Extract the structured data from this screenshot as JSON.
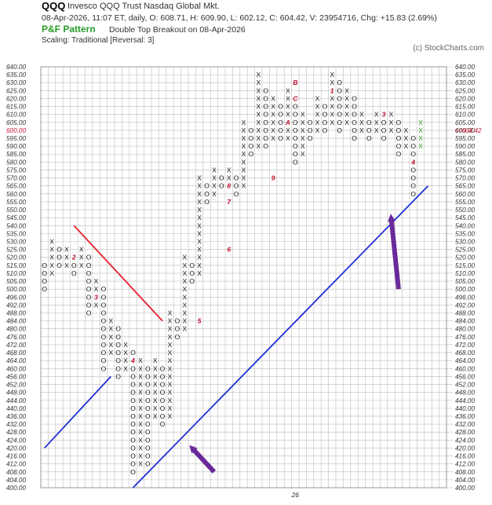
{
  "header": {
    "symbol": "QQQ",
    "name": "Invesco QQQ Trust  Nasdaq Global Mkt.",
    "quote": "08-Apr-2026, 11:07 ET, daily, O: 608.71, H: 609.90, L: 602.12, C: 604.42, V: 23954716, Chg: +15.83 (2.69%)",
    "pf_label": "P&F Pattern",
    "pattern": "Double Top Breakout on 08-Apr-2026",
    "scaling": "Scaling: Traditional [Reversal: 3]",
    "copyright": "(c) StockCharts.com"
  },
  "colors": {
    "grid": "#bcbcbc",
    "mark": "#1a1a1a",
    "month_marker": "#c0102e",
    "current_column": "#2aa02a",
    "resistance_line": "#e8202a",
    "support_line": "#1f2fd6",
    "arrow": "#6a2a9a",
    "price_tag": "#d01030"
  },
  "chart_data": {
    "type": "point-and-figure",
    "title": "QQQ",
    "box_levels": [
      400,
      404,
      408,
      412,
      416,
      420,
      424,
      428,
      432,
      436,
      440,
      444,
      448,
      452,
      456,
      460,
      464,
      468,
      472,
      476,
      480,
      484,
      488,
      492,
      496,
      500,
      505,
      510,
      515,
      520,
      525,
      530,
      535,
      540,
      545,
      550,
      555,
      560,
      565,
      570,
      575,
      580,
      585,
      590,
      595,
      600,
      605,
      610,
      615,
      620,
      625,
      630,
      635,
      640
    ],
    "y_tick_labels": [
      "400.00",
      "404.00",
      "408.00",
      "412.00",
      "416.00",
      "420.00",
      "424.00",
      "428.00",
      "432.00",
      "436.00",
      "440.00",
      "444.00",
      "448.00",
      "452.00",
      "456.00",
      "460.00",
      "464.00",
      "468.00",
      "472.00",
      "476.00",
      "480.00",
      "484.00",
      "488.00",
      "492.00",
      "496.00",
      "500.00",
      "505.00",
      "510.00",
      "515.00",
      "520.00",
      "525.00",
      "530.00",
      "535.00",
      "540.00",
      "545.00",
      "550.00",
      "555.00",
      "560.00",
      "565.00",
      "570.00",
      "575.00",
      "580.00",
      "585.00",
      "590.00",
      "595.00",
      "600.00",
      "605.00",
      "610.00",
      "615.00",
      "620.00",
      "625.00",
      "630.00",
      "635.00",
      "640.00"
    ],
    "x_label": "26",
    "x_label_column": 34,
    "columns": [
      {
        "type": "O",
        "low": 500,
        "high": 515
      },
      {
        "type": "X",
        "low": 510,
        "high": 530
      },
      {
        "type": "O",
        "low": 515,
        "high": 525
      },
      {
        "type": "X",
        "low": 515,
        "high": 525
      },
      {
        "type": "O",
        "low": 510,
        "high": 520
      },
      {
        "type": "X",
        "low": 515,
        "high": 525
      },
      {
        "type": "O",
        "low": 488,
        "high": 520
      },
      {
        "type": "X",
        "low": 492,
        "high": 505
      },
      {
        "type": "O",
        "low": 460,
        "high": 500
      },
      {
        "type": "X",
        "low": 468,
        "high": 484
      },
      {
        "type": "O",
        "low": 456,
        "high": 480
      },
      {
        "type": "X",
        "low": 460,
        "high": 472
      },
      {
        "type": "O",
        "low": 408,
        "high": 468
      },
      {
        "type": "X",
        "low": 412,
        "high": 464
      },
      {
        "type": "O",
        "low": 412,
        "high": 460
      },
      {
        "type": "X",
        "low": 436,
        "high": 464
      },
      {
        "type": "O",
        "low": 432,
        "high": 460
      },
      {
        "type": "X",
        "low": 436,
        "high": 488
      },
      {
        "type": "O",
        "low": 476,
        "high": 484
      },
      {
        "type": "X",
        "low": 480,
        "high": 520
      },
      {
        "type": "O",
        "low": 505,
        "high": 515
      },
      {
        "type": "X",
        "low": 510,
        "high": 570
      },
      {
        "type": "O",
        "low": 555,
        "high": 565
      },
      {
        "type": "X",
        "low": 560,
        "high": 575
      },
      {
        "type": "O",
        "low": 565,
        "high": 570
      },
      {
        "type": "X",
        "low": 565,
        "high": 575
      },
      {
        "type": "O",
        "low": 560,
        "high": 570
      },
      {
        "type": "X",
        "low": 565,
        "high": 605
      },
      {
        "type": "O",
        "low": 585,
        "high": 600
      },
      {
        "type": "X",
        "low": 590,
        "high": 635
      },
      {
        "type": "O",
        "low": 590,
        "high": 625
      },
      {
        "type": "X",
        "low": 595,
        "high": 620
      },
      {
        "type": "O",
        "low": 595,
        "high": 615
      },
      {
        "type": "X",
        "low": 595,
        "high": 625
      },
      {
        "type": "O",
        "low": 580,
        "high": 620
      },
      {
        "type": "X",
        "low": 585,
        "high": 610
      },
      {
        "type": "O",
        "low": 595,
        "high": 605
      },
      {
        "type": "X",
        "low": 600,
        "high": 620
      },
      {
        "type": "O",
        "low": 600,
        "high": 615
      },
      {
        "type": "X",
        "low": 605,
        "high": 635
      },
      {
        "type": "O",
        "low": 600,
        "high": 630
      },
      {
        "type": "X",
        "low": 605,
        "high": 625
      },
      {
        "type": "O",
        "low": 595,
        "high": 620
      },
      {
        "type": "X",
        "low": 600,
        "high": 610
      },
      {
        "type": "O",
        "low": 595,
        "high": 605
      },
      {
        "type": "X",
        "low": 600,
        "high": 610
      },
      {
        "type": "O",
        "low": 595,
        "high": 605
      },
      {
        "type": "X",
        "low": 600,
        "high": 610
      },
      {
        "type": "O",
        "low": 585,
        "high": 605
      },
      {
        "type": "X",
        "low": 590,
        "high": 600
      },
      {
        "type": "O",
        "low": 560,
        "high": 595
      },
      {
        "type": "X",
        "low": 590,
        "high": 605
      }
    ],
    "month_markers": [
      {
        "col": 4,
        "price": 520,
        "label": "2"
      },
      {
        "col": 7,
        "price": 496,
        "label": "3"
      },
      {
        "col": 12,
        "price": 464,
        "label": "4"
      },
      {
        "col": 21,
        "price": 484,
        "label": "5"
      },
      {
        "col": 25,
        "price": 525,
        "label": "6"
      },
      {
        "col": 25,
        "price": 555,
        "label": "7"
      },
      {
        "col": 25,
        "price": 565,
        "label": "8"
      },
      {
        "col": 31,
        "price": 570,
        "label": "9"
      },
      {
        "col": 33,
        "price": 605,
        "label": "A"
      },
      {
        "col": 34,
        "price": 630,
        "label": "B"
      },
      {
        "col": 34,
        "price": 620,
        "label": "C"
      },
      {
        "col": 39,
        "price": 625,
        "label": "1"
      },
      {
        "col": 46,
        "price": 610,
        "label": "3"
      },
      {
        "col": 50,
        "price": 580,
        "label": "4"
      }
    ],
    "current_column_index": 51,
    "current_price_label": "604.42",
    "current_price_arrow": "<<",
    "highlighted_box": 600,
    "resistance_line": {
      "from": {
        "col": 4,
        "price": 540
      },
      "to": {
        "col": 16,
        "price": 484
      }
    },
    "support_lines": [
      {
        "from": {
          "col": 0,
          "price": 420
        },
        "to": {
          "col": 9,
          "price": 456
        }
      },
      {
        "from": {
          "col": 12,
          "price": 400
        },
        "to": {
          "col": 52,
          "price": 565
        }
      }
    ],
    "arrows": [
      {
        "tip": {
          "col": 47,
          "price": 545
        },
        "tail": {
          "col": 48,
          "price": 500
        }
      },
      {
        "tip": {
          "col": 20,
          "price": 420
        },
        "tail": {
          "col": 23,
          "price": 408
        }
      }
    ]
  }
}
